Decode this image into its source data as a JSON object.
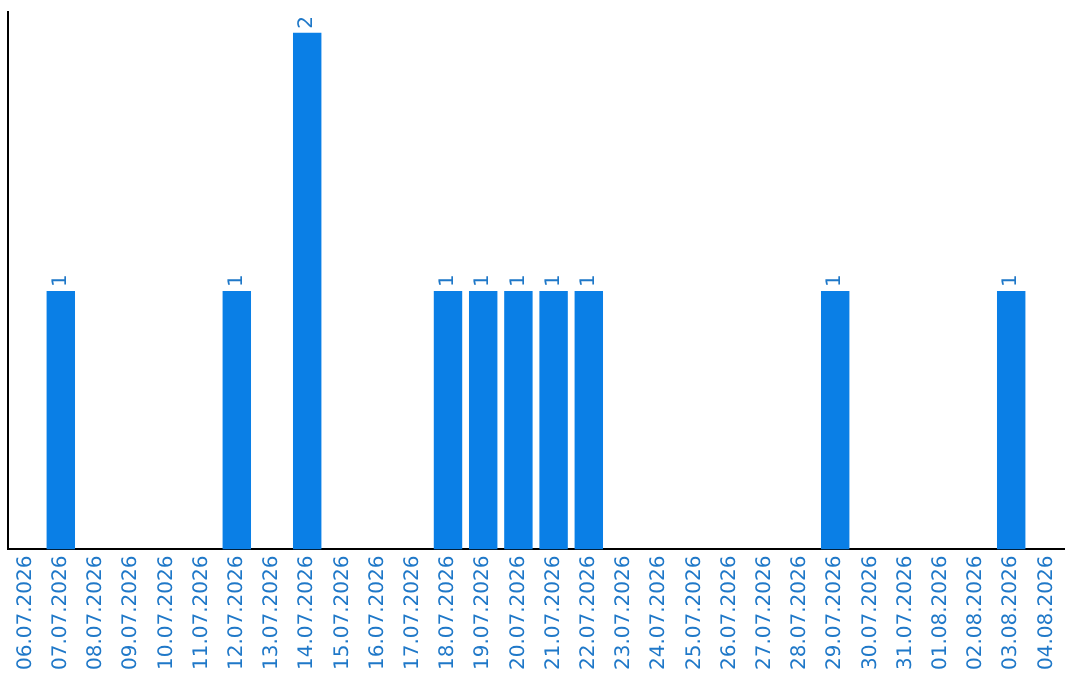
{
  "chart_data": {
    "type": "bar",
    "categories": [
      "06.07.2026",
      "07.07.2026",
      "08.07.2026",
      "09.07.2026",
      "10.07.2026",
      "11.07.2026",
      "12.07.2026",
      "13.07.2026",
      "14.07.2026",
      "15.07.2026",
      "16.07.2026",
      "17.07.2026",
      "18.07.2026",
      "19.07.2026",
      "20.07.2026",
      "21.07.2026",
      "22.07.2026",
      "23.07.2026",
      "24.07.2026",
      "25.07.2026",
      "26.07.2026",
      "27.07.2026",
      "28.07.2026",
      "29.07.2026",
      "30.07.2026",
      "31.07.2026",
      "01.08.2026",
      "02.08.2026",
      "03.08.2026",
      "04.08.2026"
    ],
    "values": [
      0,
      1,
      0,
      0,
      0,
      0,
      1,
      0,
      2,
      0,
      0,
      0,
      1,
      1,
      1,
      1,
      1,
      0,
      0,
      0,
      0,
      0,
      0,
      1,
      0,
      0,
      0,
      0,
      1,
      0
    ],
    "value_labels": [
      null,
      "1",
      null,
      null,
      null,
      null,
      "1",
      null,
      "2",
      null,
      null,
      null,
      "1",
      "1",
      "1",
      "1",
      "1",
      null,
      null,
      null,
      null,
      null,
      null,
      "1",
      null,
      null,
      null,
      null,
      "1",
      null
    ],
    "color": "#0a7fe6",
    "ylim": [
      0,
      2.08
    ],
    "tick_labels": "x",
    "grid": false,
    "legend": false
  }
}
